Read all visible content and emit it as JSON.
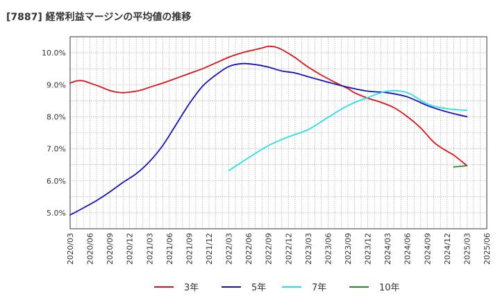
{
  "chart_data": {
    "type": "line",
    "title": "[7887]  経常利益マージンの平均値の推移",
    "xlabel": "",
    "ylabel": "",
    "ylim": [
      4.5,
      10.5
    ],
    "y_ticks": [
      "5.0%",
      "6.0%",
      "7.0%",
      "8.0%",
      "9.0%",
      "10.0%"
    ],
    "y_tick_values": [
      5,
      6,
      7,
      8,
      9,
      10
    ],
    "x_ticks": [
      "2020/03",
      "2020/06",
      "2020/09",
      "2020/12",
      "2021/03",
      "2021/06",
      "2021/09",
      "2021/12",
      "2022/03",
      "2022/06",
      "2022/09",
      "2022/12",
      "2023/03",
      "2023/06",
      "2023/09",
      "2023/12",
      "2024/03",
      "2024/06",
      "2024/09",
      "2024/12",
      "2025/03",
      "2025/06"
    ],
    "grid": true,
    "legend_position": "bottom",
    "series": [
      {
        "name": "3年",
        "color": "#dd1111",
        "points": [
          [
            "2020/03",
            9.05
          ],
          [
            "2020/04",
            9.12
          ],
          [
            "2020/05",
            9.12
          ],
          [
            "2020/06",
            9.05
          ],
          [
            "2020/07",
            8.98
          ],
          [
            "2020/08",
            8.9
          ],
          [
            "2020/09",
            8.82
          ],
          [
            "2020/10",
            8.77
          ],
          [
            "2020/11",
            8.75
          ],
          [
            "2020/12",
            8.77
          ],
          [
            "2021/01",
            8.8
          ],
          [
            "2021/02",
            8.85
          ],
          [
            "2021/03",
            8.92
          ],
          [
            "2021/05",
            9.05
          ],
          [
            "2021/07",
            9.2
          ],
          [
            "2021/09",
            9.35
          ],
          [
            "2021/11",
            9.5
          ],
          [
            "2022/01",
            9.68
          ],
          [
            "2022/03",
            9.86
          ],
          [
            "2022/05",
            10.0
          ],
          [
            "2022/07",
            10.1
          ],
          [
            "2022/08",
            10.15
          ],
          [
            "2022/09",
            10.2
          ],
          [
            "2022/10",
            10.18
          ],
          [
            "2022/11",
            10.1
          ],
          [
            "2022/12",
            9.98
          ],
          [
            "2023/01",
            9.85
          ],
          [
            "2023/03",
            9.55
          ],
          [
            "2023/05",
            9.3
          ],
          [
            "2023/07",
            9.08
          ],
          [
            "2023/09",
            8.88
          ],
          [
            "2023/10",
            8.75
          ],
          [
            "2023/12",
            8.58
          ],
          [
            "2024/02",
            8.45
          ],
          [
            "2024/04",
            8.28
          ],
          [
            "2024/06",
            8.0
          ],
          [
            "2024/08",
            7.65
          ],
          [
            "2024/10",
            7.2
          ],
          [
            "2024/12",
            6.92
          ],
          [
            "2025/01",
            6.8
          ],
          [
            "2025/03",
            6.47
          ]
        ]
      },
      {
        "name": "5年",
        "color": "#1111bb",
        "points": [
          [
            "2020/03",
            4.93
          ],
          [
            "2020/05",
            5.15
          ],
          [
            "2020/07",
            5.38
          ],
          [
            "2020/09",
            5.65
          ],
          [
            "2020/11",
            5.95
          ],
          [
            "2021/01",
            6.22
          ],
          [
            "2021/03",
            6.6
          ],
          [
            "2021/05",
            7.1
          ],
          [
            "2021/07",
            7.75
          ],
          [
            "2021/09",
            8.4
          ],
          [
            "2021/11",
            8.95
          ],
          [
            "2022/01",
            9.3
          ],
          [
            "2022/03",
            9.57
          ],
          [
            "2022/05",
            9.66
          ],
          [
            "2022/07",
            9.63
          ],
          [
            "2022/09",
            9.55
          ],
          [
            "2022/11",
            9.43
          ],
          [
            "2023/01",
            9.37
          ],
          [
            "2023/03",
            9.25
          ],
          [
            "2023/06",
            9.08
          ],
          [
            "2023/09",
            8.92
          ],
          [
            "2023/12",
            8.8
          ],
          [
            "2024/03",
            8.75
          ],
          [
            "2024/06",
            8.62
          ],
          [
            "2024/09",
            8.35
          ],
          [
            "2024/12",
            8.15
          ],
          [
            "2025/03",
            8.0
          ]
        ]
      },
      {
        "name": "7年",
        "color": "#22e0ee",
        "points": [
          [
            "2022/03",
            6.32
          ],
          [
            "2022/06",
            6.72
          ],
          [
            "2022/09",
            7.1
          ],
          [
            "2022/12",
            7.37
          ],
          [
            "2023/03",
            7.6
          ],
          [
            "2023/06",
            7.98
          ],
          [
            "2023/09",
            8.35
          ],
          [
            "2023/12",
            8.6
          ],
          [
            "2024/03",
            8.8
          ],
          [
            "2024/06",
            8.75
          ],
          [
            "2024/09",
            8.4
          ],
          [
            "2024/12",
            8.25
          ],
          [
            "2025/03",
            8.2
          ]
        ]
      },
      {
        "name": "10年",
        "color": "#228822",
        "points": [
          [
            "2025/01",
            6.43
          ],
          [
            "2025/03",
            6.47
          ]
        ]
      }
    ]
  }
}
